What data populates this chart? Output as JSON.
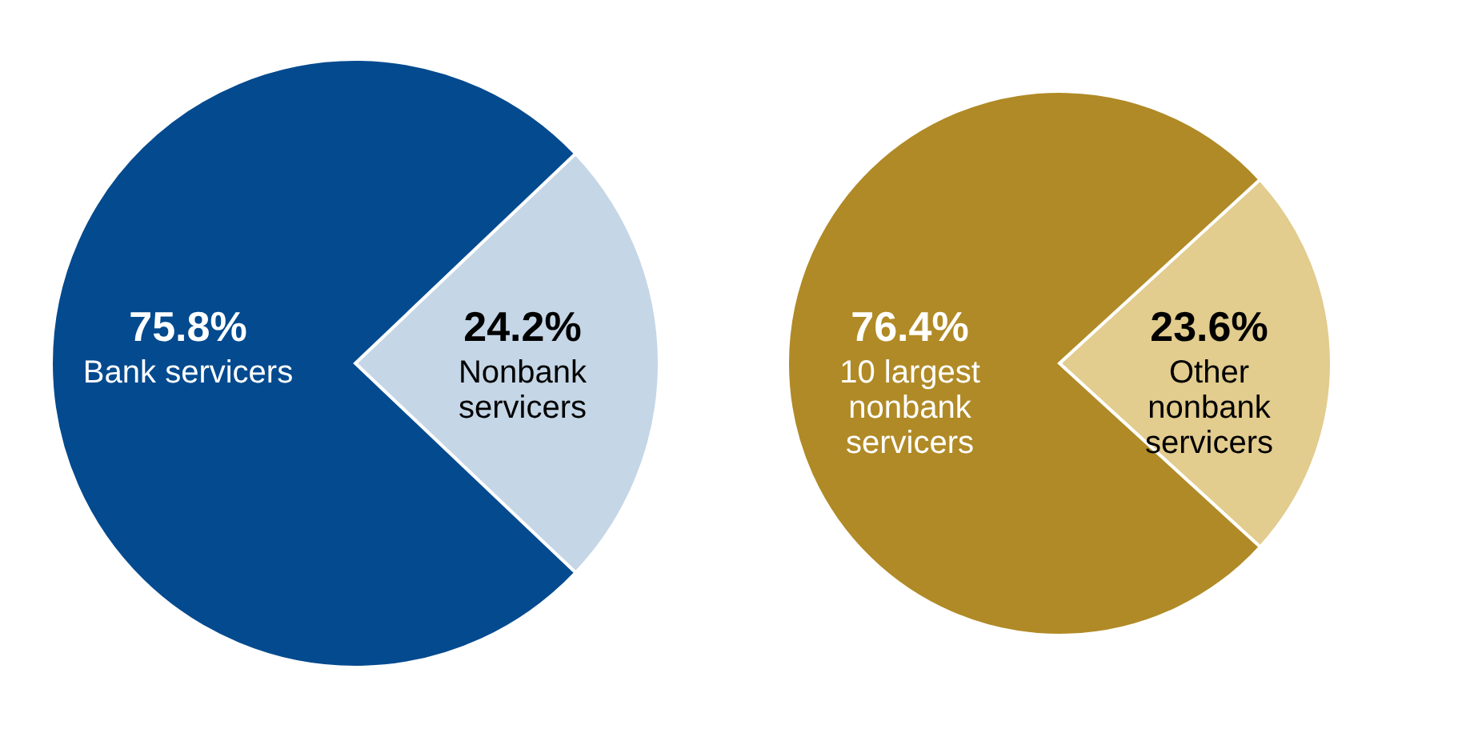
{
  "chart_data": [
    {
      "type": "pie",
      "categories": [
        "Nonbank\nservicers",
        "Bank servicers"
      ],
      "values": [
        24.2,
        75.8
      ],
      "colors": [
        "#c5d6e6",
        "#034a8f"
      ],
      "value_labels": [
        "24.2%",
        "75.8%"
      ]
    },
    {
      "type": "pie",
      "categories": [
        "Other\nnonbank\nservicers",
        "10 largest\nnonbank\nservicers"
      ],
      "values": [
        23.6,
        76.4
      ],
      "colors": [
        "#e2cc8e",
        "#b08a26"
      ],
      "value_labels": [
        "23.6%",
        "76.4%"
      ]
    }
  ]
}
